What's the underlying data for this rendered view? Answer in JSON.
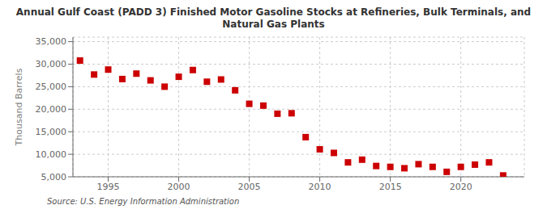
{
  "chart_data": {
    "type": "scatter",
    "title": "Annual Gulf Coast (PADD 3) Finished Motor Gasoline Stocks at Refineries, Bulk Terminals, and\nNatural Gas Plants",
    "ylabel": "Thousand Barrels",
    "annotations": [
      "Source: U.S. Energy Information Administration"
    ],
    "x": [
      1993,
      1994,
      1995,
      1996,
      1997,
      1998,
      1999,
      2000,
      2001,
      2002,
      2003,
      2004,
      2005,
      2006,
      2007,
      2008,
      2009,
      2010,
      2011,
      2012,
      2013,
      2014,
      2015,
      2016,
      2017,
      2018,
      2019,
      2020,
      2021,
      2022,
      2023
    ],
    "values": [
      30800,
      27700,
      28800,
      26700,
      27900,
      26400,
      25000,
      27200,
      28700,
      26100,
      26600,
      24200,
      21200,
      20800,
      19000,
      19100,
      13800,
      11100,
      10300,
      8200,
      8800,
      7400,
      7200,
      6900,
      7800,
      7200,
      6100,
      7200,
      7700,
      8200,
      5300
    ],
    "color": "#cc0000",
    "marker": "square",
    "xlim": [
      1992.5,
      2024.5
    ],
    "ylim": [
      5000,
      36000
    ],
    "xticks": [
      1995,
      2000,
      2005,
      2010,
      2015,
      2020
    ],
    "yticks": [
      {
        "value": 5000,
        "label": "5,000"
      },
      {
        "value": 10000,
        "label": "10,000"
      },
      {
        "value": 15000,
        "label": "15,000"
      },
      {
        "value": 20000,
        "label": "20,000"
      },
      {
        "value": 25000,
        "label": "25,000"
      },
      {
        "value": 30000,
        "label": "30,000"
      },
      {
        "value": 35000,
        "label": "35,000"
      }
    ],
    "grid": true
  }
}
